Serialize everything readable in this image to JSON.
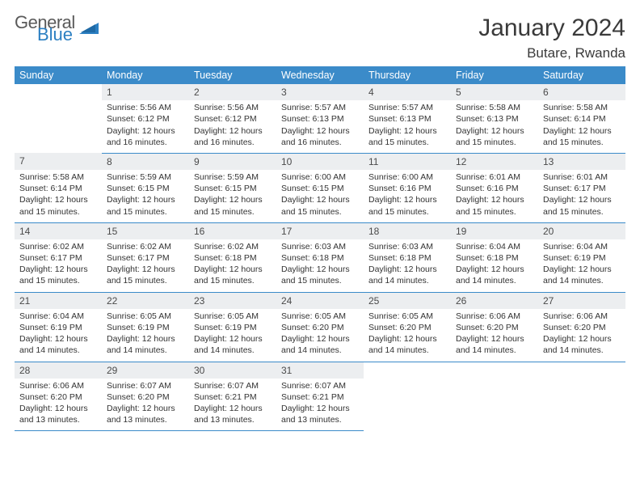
{
  "logo": {
    "textTop": "General",
    "textBottom": "Blue",
    "shapeColor": "#2b7fc2",
    "grayColor": "#5a5a5a"
  },
  "title": "January 2024",
  "location": "Butare, Rwanda",
  "colors": {
    "headerBg": "#3b8bc9",
    "headerText": "#ffffff",
    "dayRowBg": "#eceef0",
    "bodyText": "#333333",
    "ruleColor": "#3b8bc9"
  },
  "dayHeaders": [
    "Sunday",
    "Monday",
    "Tuesday",
    "Wednesday",
    "Thursday",
    "Friday",
    "Saturday"
  ],
  "weeks": [
    {
      "nums": [
        "",
        "1",
        "2",
        "3",
        "4",
        "5",
        "6"
      ],
      "cells": [
        [],
        [
          "Sunrise: 5:56 AM",
          "Sunset: 6:12 PM",
          "Daylight: 12 hours",
          "and 16 minutes."
        ],
        [
          "Sunrise: 5:56 AM",
          "Sunset: 6:12 PM",
          "Daylight: 12 hours",
          "and 16 minutes."
        ],
        [
          "Sunrise: 5:57 AM",
          "Sunset: 6:13 PM",
          "Daylight: 12 hours",
          "and 16 minutes."
        ],
        [
          "Sunrise: 5:57 AM",
          "Sunset: 6:13 PM",
          "Daylight: 12 hours",
          "and 15 minutes."
        ],
        [
          "Sunrise: 5:58 AM",
          "Sunset: 6:13 PM",
          "Daylight: 12 hours",
          "and 15 minutes."
        ],
        [
          "Sunrise: 5:58 AM",
          "Sunset: 6:14 PM",
          "Daylight: 12 hours",
          "and 15 minutes."
        ]
      ]
    },
    {
      "nums": [
        "7",
        "8",
        "9",
        "10",
        "11",
        "12",
        "13"
      ],
      "cells": [
        [
          "Sunrise: 5:58 AM",
          "Sunset: 6:14 PM",
          "Daylight: 12 hours",
          "and 15 minutes."
        ],
        [
          "Sunrise: 5:59 AM",
          "Sunset: 6:15 PM",
          "Daylight: 12 hours",
          "and 15 minutes."
        ],
        [
          "Sunrise: 5:59 AM",
          "Sunset: 6:15 PM",
          "Daylight: 12 hours",
          "and 15 minutes."
        ],
        [
          "Sunrise: 6:00 AM",
          "Sunset: 6:15 PM",
          "Daylight: 12 hours",
          "and 15 minutes."
        ],
        [
          "Sunrise: 6:00 AM",
          "Sunset: 6:16 PM",
          "Daylight: 12 hours",
          "and 15 minutes."
        ],
        [
          "Sunrise: 6:01 AM",
          "Sunset: 6:16 PM",
          "Daylight: 12 hours",
          "and 15 minutes."
        ],
        [
          "Sunrise: 6:01 AM",
          "Sunset: 6:17 PM",
          "Daylight: 12 hours",
          "and 15 minutes."
        ]
      ]
    },
    {
      "nums": [
        "14",
        "15",
        "16",
        "17",
        "18",
        "19",
        "20"
      ],
      "cells": [
        [
          "Sunrise: 6:02 AM",
          "Sunset: 6:17 PM",
          "Daylight: 12 hours",
          "and 15 minutes."
        ],
        [
          "Sunrise: 6:02 AM",
          "Sunset: 6:17 PM",
          "Daylight: 12 hours",
          "and 15 minutes."
        ],
        [
          "Sunrise: 6:02 AM",
          "Sunset: 6:18 PM",
          "Daylight: 12 hours",
          "and 15 minutes."
        ],
        [
          "Sunrise: 6:03 AM",
          "Sunset: 6:18 PM",
          "Daylight: 12 hours",
          "and 15 minutes."
        ],
        [
          "Sunrise: 6:03 AM",
          "Sunset: 6:18 PM",
          "Daylight: 12 hours",
          "and 14 minutes."
        ],
        [
          "Sunrise: 6:04 AM",
          "Sunset: 6:18 PM",
          "Daylight: 12 hours",
          "and 14 minutes."
        ],
        [
          "Sunrise: 6:04 AM",
          "Sunset: 6:19 PM",
          "Daylight: 12 hours",
          "and 14 minutes."
        ]
      ]
    },
    {
      "nums": [
        "21",
        "22",
        "23",
        "24",
        "25",
        "26",
        "27"
      ],
      "cells": [
        [
          "Sunrise: 6:04 AM",
          "Sunset: 6:19 PM",
          "Daylight: 12 hours",
          "and 14 minutes."
        ],
        [
          "Sunrise: 6:05 AM",
          "Sunset: 6:19 PM",
          "Daylight: 12 hours",
          "and 14 minutes."
        ],
        [
          "Sunrise: 6:05 AM",
          "Sunset: 6:19 PM",
          "Daylight: 12 hours",
          "and 14 minutes."
        ],
        [
          "Sunrise: 6:05 AM",
          "Sunset: 6:20 PM",
          "Daylight: 12 hours",
          "and 14 minutes."
        ],
        [
          "Sunrise: 6:05 AM",
          "Sunset: 6:20 PM",
          "Daylight: 12 hours",
          "and 14 minutes."
        ],
        [
          "Sunrise: 6:06 AM",
          "Sunset: 6:20 PM",
          "Daylight: 12 hours",
          "and 14 minutes."
        ],
        [
          "Sunrise: 6:06 AM",
          "Sunset: 6:20 PM",
          "Daylight: 12 hours",
          "and 14 minutes."
        ]
      ]
    },
    {
      "nums": [
        "28",
        "29",
        "30",
        "31",
        "",
        "",
        ""
      ],
      "cells": [
        [
          "Sunrise: 6:06 AM",
          "Sunset: 6:20 PM",
          "Daylight: 12 hours",
          "and 13 minutes."
        ],
        [
          "Sunrise: 6:07 AM",
          "Sunset: 6:20 PM",
          "Daylight: 12 hours",
          "and 13 minutes."
        ],
        [
          "Sunrise: 6:07 AM",
          "Sunset: 6:21 PM",
          "Daylight: 12 hours",
          "and 13 minutes."
        ],
        [
          "Sunrise: 6:07 AM",
          "Sunset: 6:21 PM",
          "Daylight: 12 hours",
          "and 13 minutes."
        ],
        [],
        [],
        []
      ]
    }
  ]
}
